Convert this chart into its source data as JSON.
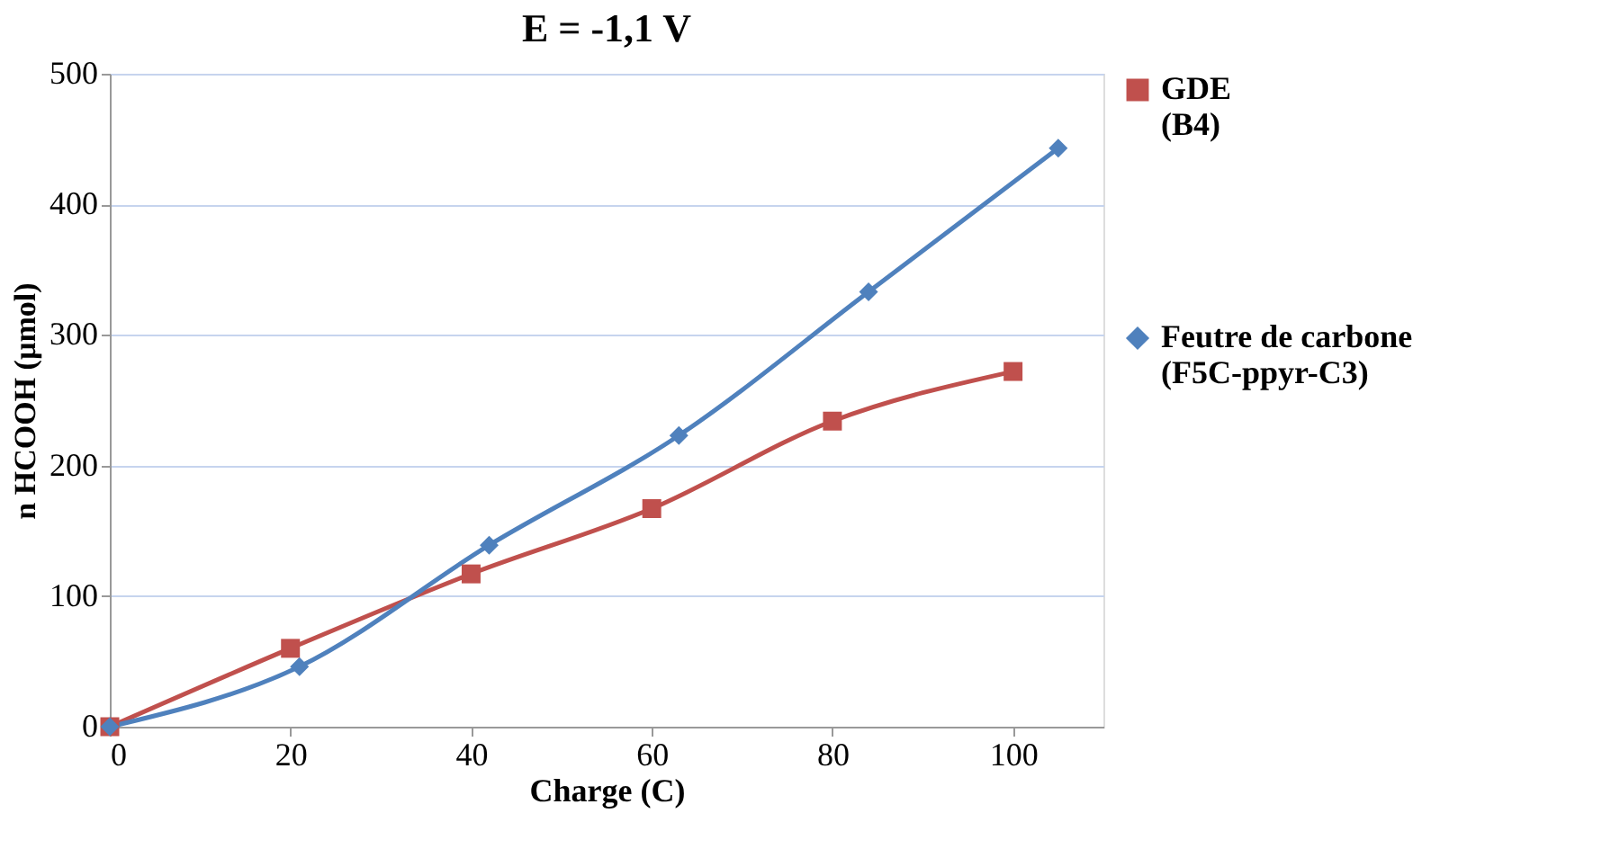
{
  "chart_data": {
    "type": "line",
    "title": "E = -1,1 V",
    "xlabel": "Charge (C)",
    "ylabel": "n HCOOH (µmol)",
    "xlim": [
      0,
      110
    ],
    "xticks": [
      0,
      20,
      40,
      60,
      80,
      100
    ],
    "ylim": [
      0,
      500
    ],
    "yticks": [
      0,
      100,
      200,
      300,
      400,
      500
    ],
    "grid": "y",
    "legend": "right",
    "series": [
      {
        "name": "GDE (B4)",
        "color": "#c0504d",
        "marker": "square",
        "x": [
          0,
          20,
          40,
          60,
          80,
          100
        ],
        "values": [
          0,
          60,
          117,
          167,
          234,
          272
        ]
      },
      {
        "name": "Feutre de carbone (F5C-ppyr-C3)",
        "color": "#4f81bd",
        "marker": "diamond",
        "x": [
          0,
          21,
          42,
          63,
          84,
          105
        ],
        "values": [
          0,
          46,
          139,
          223,
          333,
          443
        ]
      }
    ]
  }
}
